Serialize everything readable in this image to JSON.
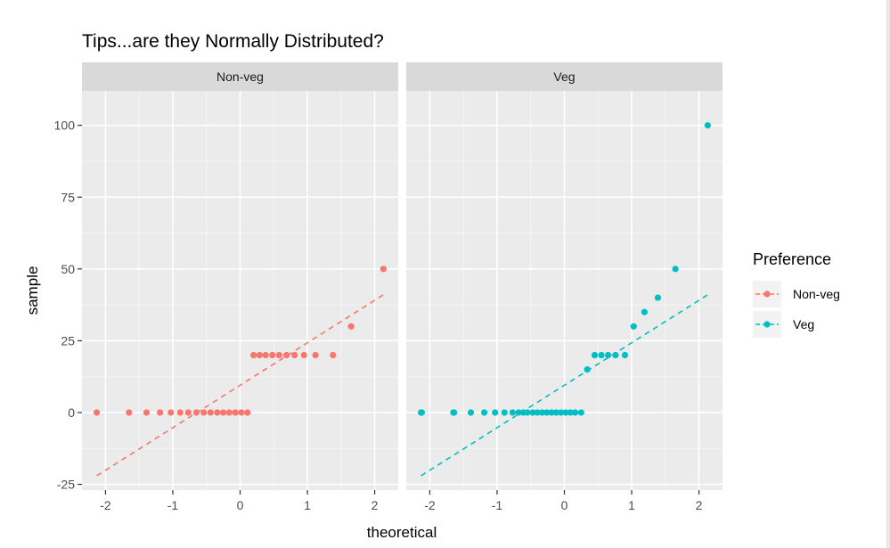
{
  "chart_data": {
    "type": "scatter",
    "title": "Tips...are they Normally Distributed?",
    "xlabel": "theoretical",
    "ylabel": "sample",
    "xlim": [
      -2.35,
      2.35
    ],
    "ylim": [
      -27,
      112
    ],
    "x_ticks": [
      -2,
      -1,
      0,
      1,
      2
    ],
    "x_tick_labels": [
      "-2",
      "-1",
      "0",
      "1",
      "2"
    ],
    "y_ticks": [
      -25,
      0,
      25,
      50,
      75,
      100
    ],
    "y_tick_labels": [
      "-25",
      "0",
      "25",
      "50",
      "75",
      "100"
    ],
    "grid": true,
    "legend": {
      "title": "Preference",
      "position": "right",
      "entries": [
        "Non-veg",
        "Veg"
      ]
    },
    "colors": {
      "Non-veg": "#F8766D",
      "Veg": "#00BFC4"
    },
    "panels": [
      {
        "name": "Non-veg",
        "points": [
          [
            -2.13,
            0
          ],
          [
            -1.65,
            0
          ],
          [
            -1.39,
            0
          ],
          [
            -1.19,
            0
          ],
          [
            -1.03,
            0
          ],
          [
            -0.89,
            0
          ],
          [
            -0.77,
            0
          ],
          [
            -0.65,
            0
          ],
          [
            -0.54,
            0
          ],
          [
            -0.44,
            0
          ],
          [
            -0.34,
            0
          ],
          [
            -0.25,
            0
          ],
          [
            -0.16,
            0
          ],
          [
            -0.07,
            0
          ],
          [
            0.02,
            0
          ],
          [
            0.11,
            0
          ],
          [
            0.2,
            20
          ],
          [
            0.29,
            20
          ],
          [
            0.38,
            20
          ],
          [
            0.48,
            20
          ],
          [
            0.58,
            20
          ],
          [
            0.69,
            20
          ],
          [
            0.81,
            20
          ],
          [
            0.95,
            20
          ],
          [
            1.12,
            20
          ],
          [
            1.38,
            20
          ],
          [
            1.65,
            30
          ],
          [
            2.13,
            50
          ]
        ],
        "line": {
          "x": [
            -2.13,
            2.13
          ],
          "y": [
            -22,
            41
          ]
        }
      },
      {
        "name": "Veg",
        "points": [
          [
            -2.13,
            0
          ],
          [
            -2.12,
            0
          ],
          [
            -1.65,
            0
          ],
          [
            -1.64,
            0
          ],
          [
            -1.39,
            0
          ],
          [
            -1.19,
            0
          ],
          [
            -1.03,
            0
          ],
          [
            -0.89,
            0
          ],
          [
            -0.77,
            0
          ],
          [
            -0.68,
            0
          ],
          [
            -0.61,
            0
          ],
          [
            -0.55,
            0
          ],
          [
            -0.47,
            0
          ],
          [
            -0.4,
            0
          ],
          [
            -0.33,
            0
          ],
          [
            -0.26,
            0
          ],
          [
            -0.19,
            0
          ],
          [
            -0.12,
            0
          ],
          [
            -0.05,
            0
          ],
          [
            0.02,
            0
          ],
          [
            0.09,
            0
          ],
          [
            0.16,
            0
          ],
          [
            0.25,
            0
          ],
          [
            0.34,
            15
          ],
          [
            0.45,
            20
          ],
          [
            0.55,
            20
          ],
          [
            0.65,
            20
          ],
          [
            0.76,
            20
          ],
          [
            0.9,
            20
          ],
          [
            1.03,
            30
          ],
          [
            1.19,
            35
          ],
          [
            1.39,
            40
          ],
          [
            1.65,
            50
          ],
          [
            2.13,
            100
          ]
        ],
        "line": {
          "x": [
            -2.13,
            2.13
          ],
          "y": [
            -22,
            41
          ]
        }
      }
    ]
  }
}
